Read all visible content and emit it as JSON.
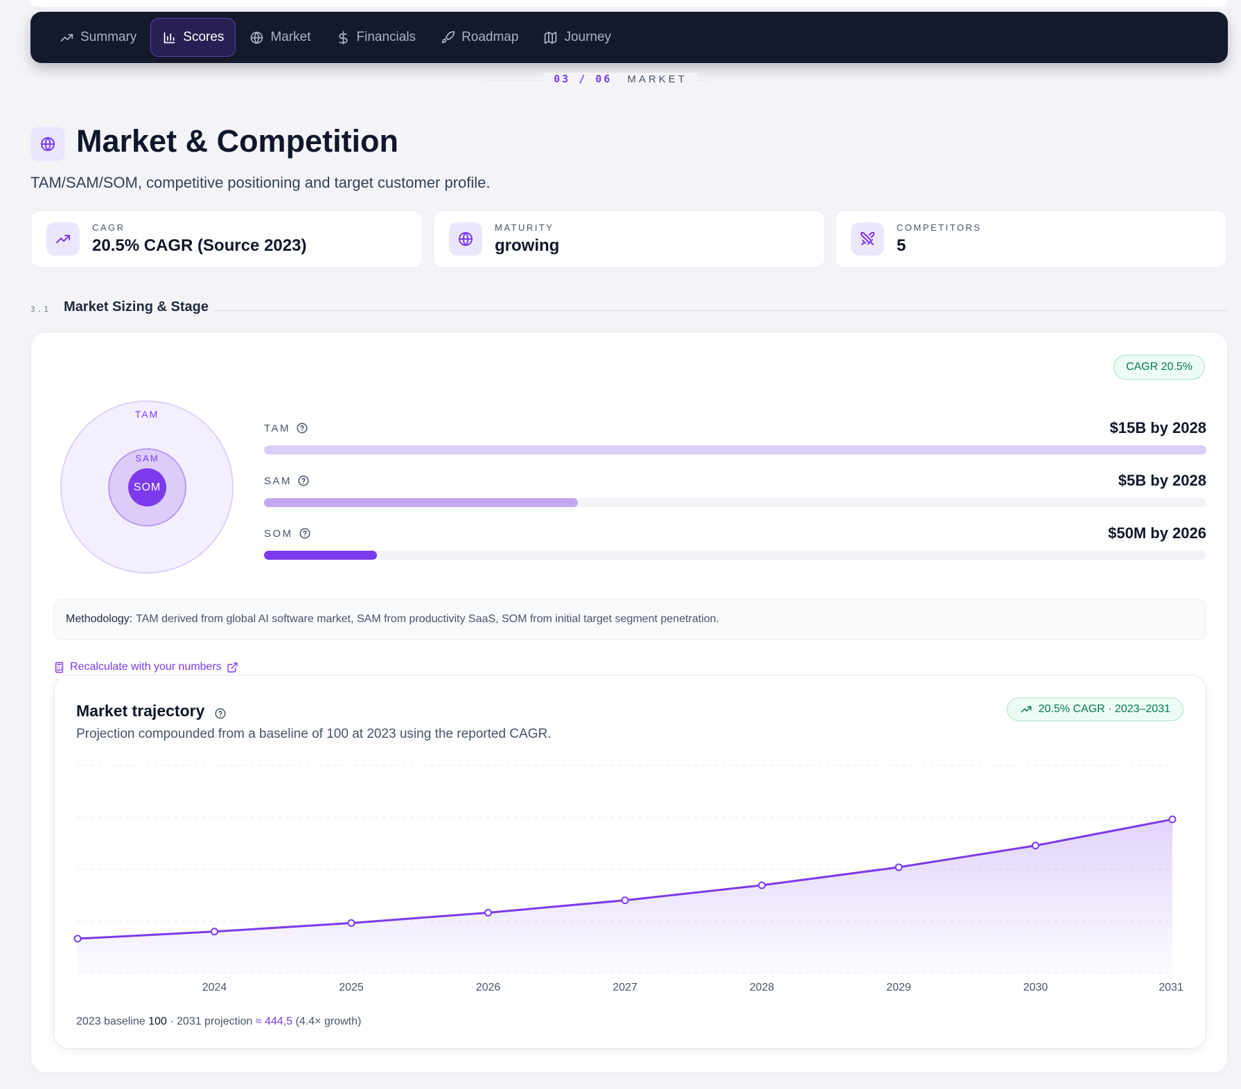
{
  "nav": {
    "items": [
      {
        "label": "Summary",
        "icon": "trending-up-icon",
        "active": false
      },
      {
        "label": "Scores",
        "icon": "bar-chart-icon",
        "active": true
      },
      {
        "label": "Market",
        "icon": "globe-icon",
        "active": false
      },
      {
        "label": "Financials",
        "icon": "dollar-icon",
        "active": false
      },
      {
        "label": "Roadmap",
        "icon": "rocket-icon",
        "active": false
      },
      {
        "label": "Journey",
        "icon": "map-icon",
        "active": false
      }
    ]
  },
  "step": {
    "number": "03 / 06",
    "label": "MARKET"
  },
  "header": {
    "title": "Market & Competition",
    "subtitle": "TAM/SAM/SOM, competitive positioning and target customer profile."
  },
  "stats": [
    {
      "label": "CAGR",
      "value": "20.5% CAGR (Source 2023)",
      "icon": "trending-up-icon"
    },
    {
      "label": "MATURITY",
      "value": "growing",
      "icon": "globe-icon"
    },
    {
      "label": "COMPETITORS",
      "value": "5",
      "icon": "swords-icon"
    }
  ],
  "section": {
    "number": "3.1",
    "title": "Market Sizing & Stage"
  },
  "sizing": {
    "cagr_badge": "CAGR 20.5%",
    "circles": {
      "tam": "TAM",
      "sam": "SAM",
      "som": "SOM"
    },
    "bars": [
      {
        "label": "TAM",
        "value": "$15B by 2028",
        "fraction": 1.0,
        "color": "#dccdf7"
      },
      {
        "label": "SAM",
        "value": "$5B by 2028",
        "fraction": 0.333,
        "color": "#c4a6f1"
      },
      {
        "label": "SOM",
        "value": "$50M by 2026",
        "fraction": 0.12,
        "color": "#7c3aed"
      }
    ],
    "methodology_label": "Methodology:",
    "methodology_text": "TAM derived from global AI software market, SAM from productivity SaaS, SOM from initial target segment penetration.",
    "recalc_label": "Recalculate with your numbers"
  },
  "trajectory": {
    "title": "Market trajectory",
    "subtitle": "Projection compounded from a baseline of 100 at 2023 using the reported CAGR.",
    "badge": "20.5% CAGR · 2023–2031",
    "footer": {
      "prefix": "2023 baseline ",
      "baseline": "100",
      "middle": " · 2031 projection ",
      "projection": "≈ 444,5",
      "suffix": " (4.4× growth)"
    }
  },
  "chart_data": {
    "type": "area",
    "x": [
      2023,
      2024,
      2025,
      2026,
      2027,
      2028,
      2029,
      2030,
      2031
    ],
    "tick_labels": [
      "2024",
      "2025",
      "2026",
      "2027",
      "2028",
      "2029",
      "2030",
      "2031"
    ],
    "series": [
      {
        "values": [
          100,
          120.5,
          145.2,
          175.0,
          210.8,
          254.1,
          306.1,
          368.9,
          444.5
        ],
        "color": "#7c3aed"
      }
    ],
    "ylim": [
      0,
      600
    ],
    "grid": true
  }
}
